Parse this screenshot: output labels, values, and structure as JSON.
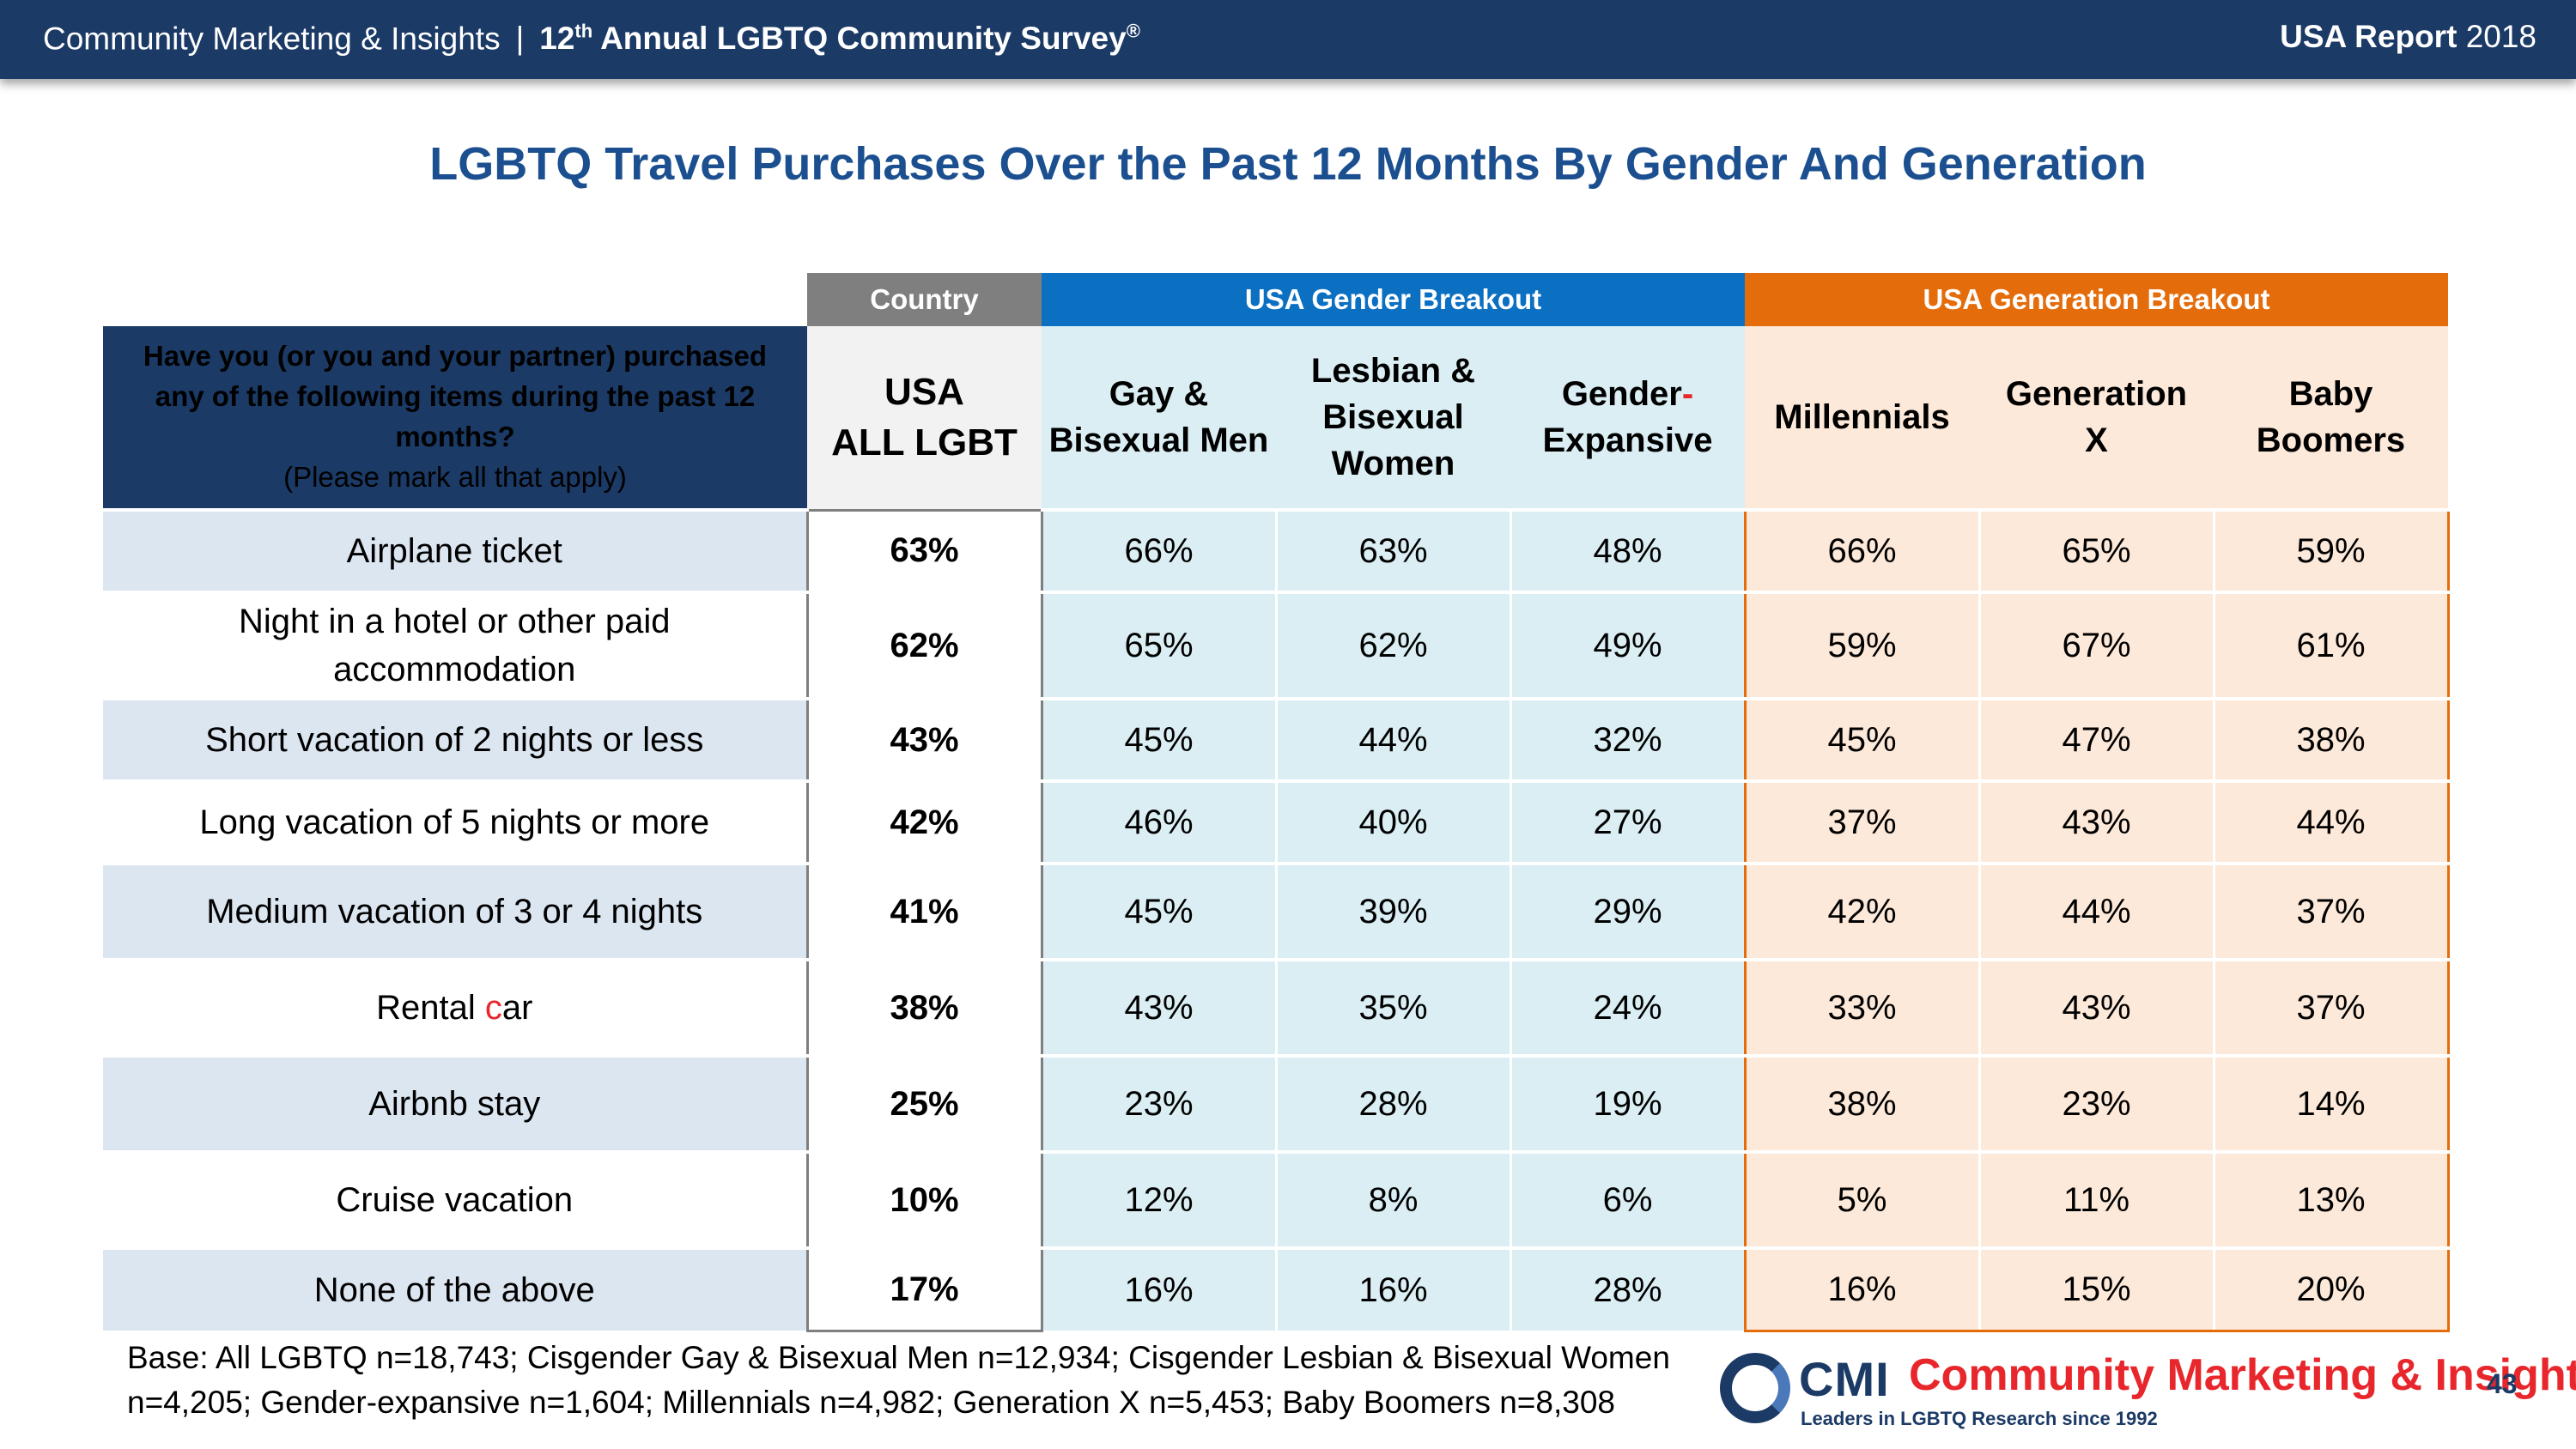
{
  "header": {
    "org": "Community Marketing & Insights",
    "separator": "|",
    "survey_ordinal": "12",
    "survey_ordinal_suffix": "th",
    "survey_name": "Annual LGBTQ Community Survey",
    "survey_mark": "®",
    "report_bold": "USA Report",
    "report_year": "2018"
  },
  "title": "LGBTQ Travel Purchases Over the Past 12 Months By Gender And Generation",
  "group_headers": {
    "country": "Country",
    "gender": "USA Gender Breakout",
    "generation": "USA Generation Breakout"
  },
  "question": {
    "text": "Have you (or you and your partner) purchased any of the following items during the past 12 months?",
    "note": "(Please mark all that apply)"
  },
  "colors": {
    "header_bar": "#1b3a66",
    "title": "#1b4f8f",
    "country": "#7f7f7f",
    "gender": "#0b6fc2",
    "generation": "#e46c0a",
    "gender_fill": "#daeef3",
    "generation_fill": "#fde9d9"
  },
  "chart_data": {
    "type": "table",
    "title": "LGBTQ Travel Purchases Over the Past 12 Months By Gender And Generation",
    "columns": [
      {
        "key": "usa",
        "line1": "USA",
        "line2": "ALL LGBT",
        "line3": ""
      },
      {
        "key": "gbm",
        "line1": "Gay &",
        "line2": "Bisexual Men",
        "line3": ""
      },
      {
        "key": "lbw",
        "line1": "Lesbian &",
        "line2": "Bisexual",
        "line3": "Women"
      },
      {
        "key": "ge",
        "line1": "Gender",
        "line1_suffix": "-",
        "line2": "Expansive",
        "line3": ""
      },
      {
        "key": "mil",
        "line1": "Millennials",
        "line2": "",
        "line3": ""
      },
      {
        "key": "genx",
        "line1": "Generation",
        "line2": "X",
        "line3": ""
      },
      {
        "key": "boom",
        "line1": "Baby",
        "line2": "Boomers",
        "line3": ""
      }
    ],
    "rows": [
      {
        "label": "Airplane ticket",
        "values": [
          "63%",
          "66%",
          "63%",
          "48%",
          "66%",
          "65%",
          "59%"
        ]
      },
      {
        "label": "Night in a hotel or other paid accommodation",
        "values": [
          "62%",
          "65%",
          "62%",
          "49%",
          "59%",
          "67%",
          "61%"
        ]
      },
      {
        "label": "Short vacation of 2 nights or less",
        "values": [
          "43%",
          "45%",
          "44%",
          "32%",
          "45%",
          "47%",
          "38%"
        ]
      },
      {
        "label": "Long vacation of 5 nights or more",
        "values": [
          "42%",
          "46%",
          "40%",
          "27%",
          "37%",
          "43%",
          "44%"
        ]
      },
      {
        "label": "Medium vacation of 3 or 4 nights",
        "values": [
          "41%",
          "45%",
          "39%",
          "29%",
          "42%",
          "44%",
          "37%"
        ]
      },
      {
        "label": "Rental car",
        "label_pre": "Rental ",
        "label_hl": "c",
        "label_post": "ar",
        "values": [
          "38%",
          "43%",
          "35%",
          "24%",
          "33%",
          "43%",
          "37%"
        ]
      },
      {
        "label": "Airbnb stay",
        "values": [
          "25%",
          "23%",
          "28%",
          "19%",
          "38%",
          "23%",
          "14%"
        ]
      },
      {
        "label": "Cruise vacation",
        "values": [
          "10%",
          "12%",
          "8%",
          "6%",
          "5%",
          "11%",
          "13%"
        ]
      },
      {
        "label": "None of the above",
        "values": [
          "17%",
          "16%",
          "16%",
          "28%",
          "16%",
          "15%",
          "20%"
        ]
      }
    ]
  },
  "footnote": {
    "line1": "Base: All LGBTQ n=18,743; Cisgender Gay & Bisexual Men n=12,934; Cisgender Lesbian & Bisexual Women",
    "line2": "n=4,205; Gender-expansive n=1,604; Millennials n=4,982; Generation X n=5,453; Baby Boomers n=8,308"
  },
  "logo": {
    "mark": "CMI",
    "name": "Community Marketing & Insights",
    "tagline": "Leaders in LGBTQ Research since 1992"
  },
  "page_number": "43"
}
